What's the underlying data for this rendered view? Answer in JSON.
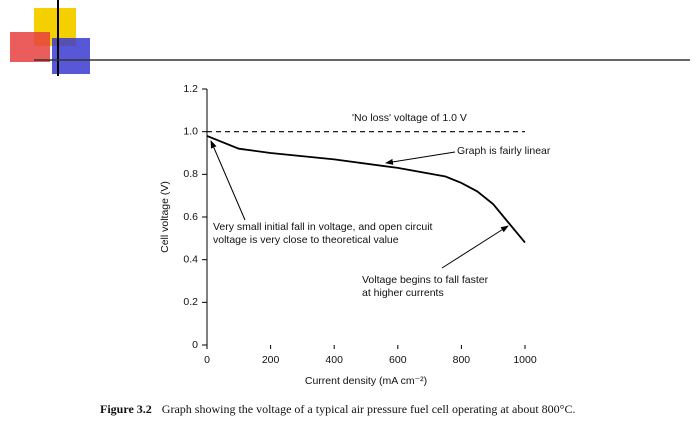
{
  "chart_data": {
    "type": "line",
    "x": [
      0,
      100,
      200,
      400,
      600,
      750,
      800,
      850,
      900,
      1000
    ],
    "values": [
      0.98,
      0.92,
      0.9,
      0.87,
      0.83,
      0.79,
      0.76,
      0.72,
      0.66,
      0.48
    ],
    "color": "#000000",
    "xlim": [
      0,
      1000
    ],
    "ylim": [
      0,
      1.2
    ],
    "xticks": [
      0,
      200,
      400,
      600,
      800,
      1000
    ],
    "yticks": [
      0,
      0.2,
      0.4,
      0.6,
      0.8,
      {
        "value": 1,
        "label": "1.0"
      },
      1.2
    ],
    "xlabel": "Current density (mA cm⁻²)",
    "ylabel": "Cell voltage (V)",
    "hline": 1,
    "annotations": [
      [
        "'No loss' voltage of 1.0 V"
      ],
      [
        "Graph is fairly linear"
      ],
      [
        "Very small initial fall in voltage, and open circuit",
        "voltage is very close to theoretical value"
      ],
      [
        "Voltage begins to fall faster",
        "at higher currents"
      ]
    ],
    "caption": {
      "label": "Figure 3.2",
      "text": "Graph showing the voltage of a typical air pressure fuel cell operating at about 800°C."
    }
  }
}
